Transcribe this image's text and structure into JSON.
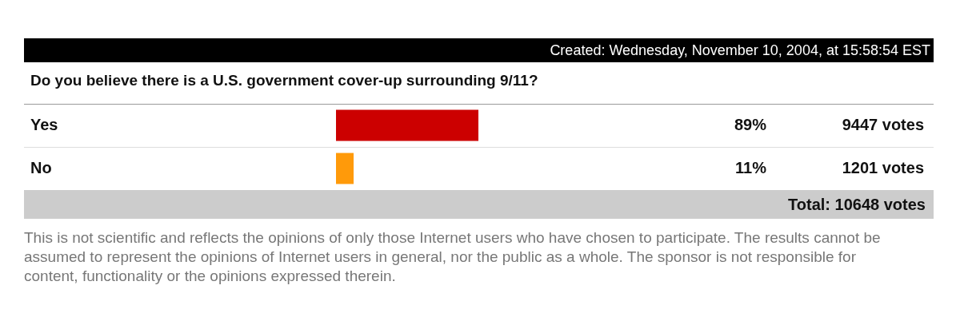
{
  "chart_data": {
    "type": "bar",
    "orientation": "horizontal",
    "title": "Do you believe there is a U.S. government cover-up surrounding 9/11?",
    "subtitle": "Created: Wednesday, November 10, 2004, at 15:58:54 EST",
    "categories": [
      "Yes",
      "No"
    ],
    "series": [
      {
        "colors": [
          "#cc0000",
          "#ff9a0a"
        ],
        "values": [
          89,
          11
        ],
        "value_labels": [
          "89%",
          "11%"
        ]
      }
    ],
    "tick_labels": false,
    "legend": false,
    "annotations": [
      "9447 votes",
      "1201 votes",
      "Total: 10648 votes",
      "This is not scientific and reflects the opinions of only those Internet users who have chosen to participate. The results cannot be assumed to represent the opinions of Internet users in general, nor the public as a whole. The sponsor is not responsible for content, functionality or the opinions expressed therein."
    ]
  }
}
